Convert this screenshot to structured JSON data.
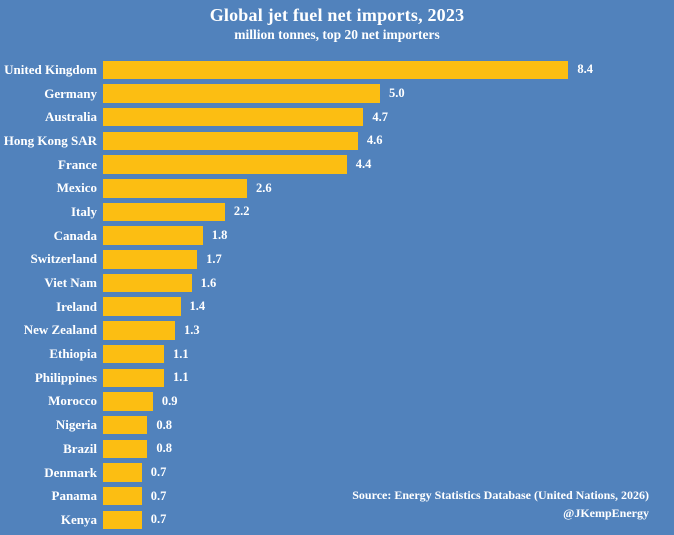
{
  "page": {
    "title": "Global jet fuel net imports, 2023",
    "subtitle": "million tonnes, top 20 net importers",
    "source_line1": "Source: Energy Statistics Database (United Nations, 2026)",
    "source_line2": "@JKempEnergy"
  },
  "colors": {
    "background": "#5182bc",
    "bar": "#fcbe12",
    "text": "#ffffff"
  },
  "chart_data": {
    "type": "bar",
    "orientation": "horizontal",
    "title": "Global jet fuel net imports, 2023",
    "subtitle": "million tonnes, top 20 net importers",
    "xlabel": "",
    "ylabel": "",
    "xlim": [
      0,
      10.2
    ],
    "grid": false,
    "legend": false,
    "sort": "descending",
    "value_labels": "end-of-bar, one decimal",
    "categories": [
      "United Kingdom",
      "Germany",
      "Australia",
      "Hong Kong SAR",
      "France",
      "Mexico",
      "Italy",
      "Canada",
      "Switzerland",
      "Viet Nam",
      "Ireland",
      "New Zealand",
      "Ethiopia",
      "Philippines",
      "Morocco",
      "Nigeria",
      "Brazil",
      "Denmark",
      "Panama",
      "Kenya"
    ],
    "values": [
      8.4,
      5.0,
      4.7,
      4.6,
      4.4,
      2.6,
      2.2,
      1.8,
      1.7,
      1.6,
      1.4,
      1.3,
      1.1,
      1.1,
      0.9,
      0.8,
      0.8,
      0.7,
      0.7,
      0.7
    ]
  }
}
